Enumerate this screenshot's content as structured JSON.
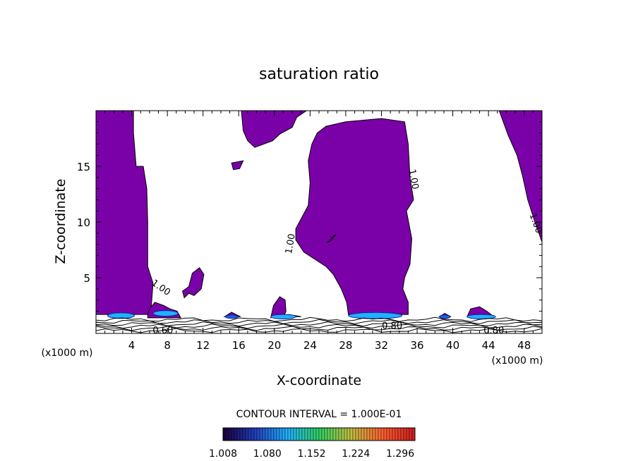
{
  "chart_data": {
    "type": "heatmap",
    "title": "saturation ratio",
    "xlabel": "X-coordinate",
    "ylabel": "Z-coordinate",
    "x_unit_left": "(x1000 m)",
    "x_unit_right": "(x1000 m)",
    "xlim": [
      0,
      50
    ],
    "ylim": [
      0,
      20
    ],
    "x_ticks": [
      4,
      8,
      12,
      16,
      20,
      24,
      28,
      32,
      36,
      40,
      44,
      48
    ],
    "y_ticks": [
      5,
      10,
      15
    ],
    "x_tick_labels": [
      "4",
      "8",
      "12",
      "16",
      "20",
      "24",
      "28",
      "32",
      "36",
      "40",
      "44",
      "48"
    ],
    "y_tick_labels": [
      "5",
      "10",
      "15"
    ],
    "contour_interval_text": "CONTOUR INTERVAL = 1.000E-01",
    "contour_labels": [
      {
        "text": "1.00",
        "x": 7.1,
        "z": 3.9,
        "angle": 35
      },
      {
        "text": "1.00",
        "x": 22.1,
        "z": 8.0,
        "angle": -80
      },
      {
        "text": "1.00",
        "x": 35.3,
        "z": 13.8,
        "angle": 80
      },
      {
        "text": "1.00",
        "x": 49.0,
        "z": 9.8,
        "angle": 70
      },
      {
        "text": "0.60",
        "x": 7.5,
        "z": 0.0,
        "angle": 0
      },
      {
        "text": "0.80",
        "x": 33.2,
        "z": 0.4,
        "angle": 0
      },
      {
        "text": "0.80",
        "x": 44.6,
        "z": 0.0,
        "angle": 0
      }
    ],
    "fill_color": "#7a00a8",
    "colorbar": {
      "min": 1.008,
      "max": 1.32,
      "tick_values": [
        1.008,
        1.08,
        1.152,
        1.224,
        1.296
      ],
      "tick_labels": [
        "1.008",
        "1.080",
        "1.152",
        "1.224",
        "1.296"
      ],
      "colors": [
        "#1a0040",
        "#2040c0",
        "#20b0ff",
        "#30d060",
        "#c0c040",
        "#ff6030",
        "#d02020"
      ]
    },
    "regions": [
      {
        "name": "left column",
        "points": [
          [
            0,
            20
          ],
          [
            4.2,
            20
          ],
          [
            4.2,
            18
          ],
          [
            4.5,
            15
          ],
          [
            5.3,
            15
          ],
          [
            5.7,
            13
          ],
          [
            5.8,
            10
          ],
          [
            5.8,
            6
          ],
          [
            6.4,
            4.5
          ],
          [
            6.2,
            2.5
          ],
          [
            6,
            1.7
          ],
          [
            0,
            1.7
          ]
        ]
      },
      {
        "name": "left cap 8",
        "points": [
          [
            5.8,
            1.7
          ],
          [
            6,
            2.2
          ],
          [
            6.6,
            2.8
          ],
          [
            7.6,
            2.5
          ],
          [
            8.3,
            2.2
          ],
          [
            9.1,
            2.0
          ],
          [
            9.5,
            1.4
          ],
          [
            5.8,
            1.4
          ]
        ]
      },
      {
        "name": "top patch 16-24",
        "points": [
          [
            16.3,
            20
          ],
          [
            23.6,
            20
          ],
          [
            22.5,
            19.4
          ],
          [
            22,
            18.5
          ],
          [
            20.6,
            17.9
          ],
          [
            19.8,
            17.3
          ],
          [
            17.8,
            16.7
          ],
          [
            17,
            17.3
          ],
          [
            16.5,
            18.2
          ]
        ]
      },
      {
        "name": "small patch 16",
        "points": [
          [
            15.2,
            15.3
          ],
          [
            16.5,
            15.5
          ],
          [
            16.1,
            14.8
          ],
          [
            15.4,
            14.7
          ]
        ]
      },
      {
        "name": "center column",
        "points": [
          [
            24.8,
            18
          ],
          [
            25.8,
            18.6
          ],
          [
            28,
            19
          ],
          [
            32,
            19.3
          ],
          [
            34.6,
            19
          ],
          [
            35,
            17
          ],
          [
            35.2,
            14
          ],
          [
            35.6,
            12
          ],
          [
            34.8,
            11
          ],
          [
            35.4,
            8.5
          ],
          [
            35.2,
            6.2
          ],
          [
            34.6,
            5
          ],
          [
            34.4,
            4
          ],
          [
            35,
            2.8
          ],
          [
            35,
            1.7
          ],
          [
            28.3,
            1.7
          ],
          [
            28.1,
            2.8
          ],
          [
            27.5,
            4
          ],
          [
            26.6,
            5.3
          ],
          [
            25.8,
            6
          ],
          [
            23.3,
            7.3
          ],
          [
            22.4,
            8.4
          ],
          [
            22.4,
            9.4
          ],
          [
            23.8,
            11.5
          ],
          [
            24,
            13.5
          ],
          [
            23.8,
            15.5
          ],
          [
            24.2,
            17
          ]
        ]
      },
      {
        "name": "right column",
        "points": [
          [
            45.2,
            20
          ],
          [
            50,
            20
          ],
          [
            50,
            8.2
          ],
          [
            49.2,
            10
          ],
          [
            48.4,
            12
          ],
          [
            47.8,
            14.2
          ],
          [
            47.2,
            16
          ],
          [
            46.2,
            17.8
          ]
        ]
      },
      {
        "name": "blob 9-12",
        "points": [
          [
            9.7,
            3.8
          ],
          [
            10.4,
            4.2
          ],
          [
            10.8,
            5.4
          ],
          [
            11.6,
            5.9
          ],
          [
            12.1,
            5.3
          ],
          [
            11.8,
            4
          ],
          [
            11,
            3.4
          ],
          [
            10.4,
            3.6
          ],
          [
            9.9,
            3.2
          ]
        ]
      },
      {
        "name": "bump 20",
        "points": [
          [
            19.6,
            1.4
          ],
          [
            19.9,
            2.5
          ],
          [
            20.6,
            3.3
          ],
          [
            21.2,
            3.0
          ],
          [
            21.3,
            2.0
          ],
          [
            21.1,
            1.6
          ],
          [
            20.4,
            1.7
          ]
        ]
      },
      {
        "name": "bump 20b",
        "points": [
          [
            20.7,
            1.5
          ],
          [
            21.6,
            1.7
          ],
          [
            23,
            1.5
          ]
        ]
      },
      {
        "name": "bump 15",
        "points": [
          [
            14.4,
            1.5
          ],
          [
            15.2,
            1.9
          ],
          [
            16.2,
            1.5
          ]
        ]
      },
      {
        "name": "bump 39",
        "points": [
          [
            38.5,
            1.5
          ],
          [
            39.1,
            1.8
          ],
          [
            39.8,
            1.5
          ]
        ]
      },
      {
        "name": "bump 43",
        "points": [
          [
            41.6,
            1.5
          ],
          [
            42,
            2.2
          ],
          [
            43,
            2.4
          ],
          [
            43.8,
            2.0
          ],
          [
            44.6,
            1.5
          ]
        ]
      },
      {
        "name": "lens 26",
        "points": [
          [
            26,
            8.2
          ],
          [
            26.4,
            8.6
          ],
          [
            26.9,
            8.9
          ],
          [
            26.3,
            8.3
          ]
        ]
      }
    ],
    "hotspots": [
      {
        "x": 2.8,
        "z": 1.6,
        "rx": 1.5,
        "rz": 0.25,
        "color": "#20b0ff"
      },
      {
        "x": 7.8,
        "z": 1.8,
        "rx": 1.4,
        "rz": 0.25,
        "color": "#20b0ff"
      },
      {
        "x": 21.0,
        "z": 1.5,
        "rx": 1.4,
        "rz": 0.2,
        "color": "#20b0ff"
      },
      {
        "x": 31.3,
        "z": 1.6,
        "rx": 3.0,
        "rz": 0.28,
        "color": "#20b0ff"
      },
      {
        "x": 43.2,
        "z": 1.5,
        "rx": 1.6,
        "rz": 0.2,
        "color": "#20b0ff"
      },
      {
        "x": 39.1,
        "z": 1.5,
        "rx": 0.6,
        "rz": 0.15,
        "color": "#2060e0"
      },
      {
        "x": 15.2,
        "z": 1.5,
        "rx": 0.7,
        "rz": 0.15,
        "color": "#2060e0"
      }
    ],
    "surface_layers": [
      0.25,
      0.45,
      0.65,
      0.85,
      1.05,
      1.25
    ]
  }
}
